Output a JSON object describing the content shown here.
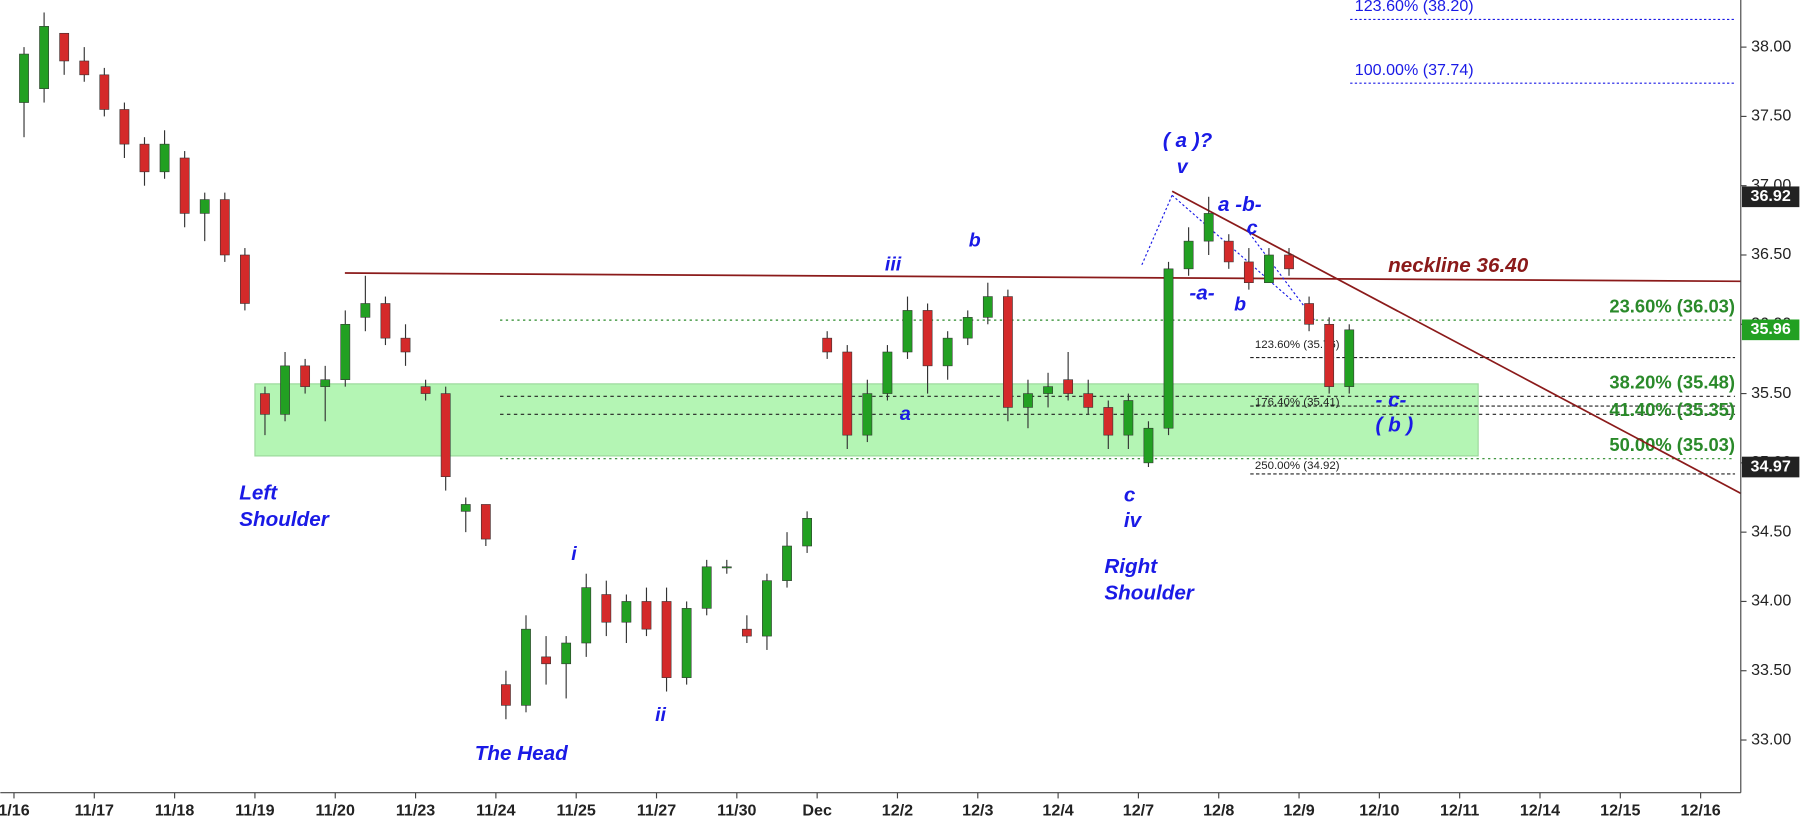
{
  "chart_data": {
    "type": "candlestick",
    "x": [
      0.125,
      0.375,
      0.625,
      0.875,
      1.125,
      1.375,
      1.625,
      1.875,
      2.125,
      2.375,
      2.625,
      2.875,
      3.125,
      3.375,
      3.625,
      3.875,
      4.125,
      4.375,
      4.625,
      4.875,
      5.125,
      5.375,
      5.625,
      5.875,
      6.125,
      6.375,
      6.625,
      6.875,
      7.125,
      7.375,
      7.625,
      7.875,
      8.125,
      8.375,
      8.625,
      8.875,
      9.125,
      9.375,
      9.625,
      9.875,
      10.125,
      10.375,
      10.625,
      10.875,
      11.125,
      11.375,
      11.625,
      11.875,
      12.125,
      12.375,
      12.625,
      12.875,
      13.125,
      13.375,
      13.625,
      13.875,
      14.125,
      14.375,
      14.625,
      14.875,
      15.125,
      15.375,
      15.625,
      15.875,
      16.125,
      16.375,
      16.625
    ],
    "open": [
      37.6,
      37.7,
      38.1,
      37.9,
      37.8,
      37.55,
      37.3,
      37.1,
      37.2,
      36.8,
      36.9,
      36.5,
      35.5,
      35.35,
      35.7,
      35.55,
      35.6,
      36.05,
      36.15,
      35.9,
      35.55,
      35.5,
      34.65,
      34.7,
      33.4,
      33.25,
      33.6,
      33.55,
      33.7,
      34.05,
      33.85,
      34.0,
      34.0,
      33.45,
      33.95,
      34.25,
      33.8,
      33.75,
      34.15,
      34.4,
      35.9,
      35.8,
      35.2,
      35.5,
      35.8,
      36.1,
      35.7,
      35.9,
      36.05,
      36.2,
      35.4,
      35.5,
      35.6,
      35.5,
      35.4,
      35.2,
      35.0,
      35.25,
      36.4,
      36.6,
      36.6,
      36.45,
      36.3,
      36.5,
      36.15,
      36.0,
      35.55
    ],
    "high": [
      38.0,
      38.25,
      38.1,
      38.0,
      37.85,
      37.6,
      37.35,
      37.4,
      37.25,
      36.95,
      36.95,
      36.55,
      35.55,
      35.8,
      35.75,
      35.7,
      36.1,
      36.35,
      36.2,
      36.0,
      35.6,
      35.55,
      34.75,
      34.7,
      33.5,
      33.9,
      33.75,
      33.75,
      34.2,
      34.15,
      34.05,
      34.1,
      34.1,
      34.0,
      34.3,
      34.3,
      33.9,
      34.2,
      34.5,
      34.65,
      35.95,
      35.85,
      35.6,
      35.85,
      36.2,
      36.15,
      35.95,
      36.1,
      36.3,
      36.25,
      35.6,
      35.65,
      35.8,
      35.6,
      35.45,
      35.5,
      35.3,
      36.45,
      36.7,
      36.92,
      36.65,
      36.55,
      36.55,
      36.55,
      36.2,
      36.05,
      36.0
    ],
    "low": [
      37.35,
      37.6,
      37.8,
      37.75,
      37.5,
      37.2,
      37.0,
      37.05,
      36.7,
      36.6,
      36.45,
      36.1,
      35.2,
      35.3,
      35.5,
      35.3,
      35.55,
      35.95,
      35.85,
      35.7,
      35.45,
      34.8,
      34.5,
      34.4,
      33.15,
      33.2,
      33.4,
      33.3,
      33.6,
      33.75,
      33.7,
      33.75,
      33.35,
      33.4,
      33.9,
      34.2,
      33.7,
      33.65,
      34.1,
      34.35,
      35.75,
      35.1,
      35.15,
      35.45,
      35.75,
      35.5,
      35.6,
      35.85,
      36.0,
      35.3,
      35.25,
      35.4,
      35.45,
      35.35,
      35.1,
      35.1,
      34.97,
      35.2,
      36.35,
      36.5,
      36.4,
      36.25,
      36.3,
      36.35,
      35.95,
      35.5,
      35.5
    ],
    "close": [
      37.95,
      38.15,
      37.9,
      37.8,
      37.55,
      37.3,
      37.1,
      37.3,
      36.8,
      36.9,
      36.5,
      36.15,
      35.35,
      35.7,
      35.55,
      35.6,
      36.0,
      36.15,
      35.9,
      35.8,
      35.5,
      34.9,
      34.7,
      34.45,
      33.25,
      33.8,
      33.55,
      33.7,
      34.1,
      33.85,
      34.0,
      33.8,
      33.45,
      33.95,
      34.25,
      34.25,
      33.75,
      34.15,
      34.4,
      34.6,
      35.8,
      35.2,
      35.5,
      35.8,
      36.1,
      35.7,
      35.9,
      36.05,
      36.2,
      35.4,
      35.5,
      35.55,
      35.5,
      35.4,
      35.2,
      35.45,
      35.25,
      36.4,
      36.6,
      36.8,
      36.45,
      36.3,
      36.5,
      36.4,
      36.0,
      35.55,
      35.96
    ],
    "up_color": "#22a022",
    "down_color": "#d42a2a",
    "xlim": [
      -0.17,
      21.5
    ],
    "xticks": [
      {
        "value": 0,
        "label": "1/16"
      },
      {
        "value": 1,
        "label": "11/17"
      },
      {
        "value": 2,
        "label": "11/18"
      },
      {
        "value": 3,
        "label": "11/19"
      },
      {
        "value": 4,
        "label": "11/20"
      },
      {
        "value": 5,
        "label": "11/23"
      },
      {
        "value": 6,
        "label": "11/24"
      },
      {
        "value": 7,
        "label": "11/25"
      },
      {
        "value": 8,
        "label": "11/27"
      },
      {
        "value": 9,
        "label": "11/30"
      },
      {
        "value": 10,
        "label": "Dec"
      },
      {
        "value": 11,
        "label": "12/2"
      },
      {
        "value": 12,
        "label": "12/3"
      },
      {
        "value": 13,
        "label": "12/4"
      },
      {
        "value": 14,
        "label": "12/7"
      },
      {
        "value": 15,
        "label": "12/8"
      },
      {
        "value": 16,
        "label": "12/9"
      },
      {
        "value": 17,
        "label": "12/10"
      },
      {
        "value": 18,
        "label": "12/11"
      },
      {
        "value": 19,
        "label": "12/14"
      },
      {
        "value": 20,
        "label": "12/15"
      },
      {
        "value": 21,
        "label": "12/16"
      }
    ],
    "ylim": [
      32.62,
      38.34
    ],
    "yticks": [
      {
        "value": 33,
        "label": "33.00"
      },
      {
        "value": 33.5,
        "label": "33.50"
      },
      {
        "value": 34,
        "label": "34.00"
      },
      {
        "value": 34.5,
        "label": "34.50"
      },
      {
        "value": 35,
        "label": "35.00"
      },
      {
        "value": 35.5,
        "label": "35.50"
      },
      {
        "value": 36,
        "label": "36.00"
      },
      {
        "value": 36.5,
        "label": "36.50"
      },
      {
        "value": 37,
        "label": "37.00"
      },
      {
        "value": 37.5,
        "label": "37.50"
      },
      {
        "value": 38,
        "label": "38.00"
      }
    ],
    "price_boxes": [
      36.92,
      35.96,
      34.97
    ],
    "zone": {
      "x": [
        3.0,
        18.23
      ],
      "y": [
        35.05,
        35.57
      ],
      "color": "#b4f5b4"
    },
    "fib_levels": [
      {
        "value": 38.2,
        "label": "123.60% (38.20)"
      },
      {
        "value": 37.74,
        "label": "100.00% (37.74)"
      },
      {
        "value": 36.03,
        "label": "23.60% (36.03)"
      },
      {
        "value": 35.76,
        "label": "123.60% (35.76)"
      },
      {
        "value": 35.48,
        "label": "38.20% (35.48)"
      },
      {
        "value": 35.41,
        "label": "176.40% (35.41)"
      },
      {
        "value": 35.35,
        "label": "41.40% (35.35)"
      },
      {
        "value": 35.03,
        "label": "50.00% (35.03)"
      },
      {
        "value": 34.92,
        "label": "250.00% (34.92)"
      }
    ],
    "trendlines": [
      {
        "x": [
          4.12,
          21.5
        ],
        "y": [
          36.37,
          36.31
        ]
      },
      {
        "x": [
          14.42,
          21.5
        ],
        "y": [
          36.96,
          34.78
        ]
      }
    ],
    "annotations": [
      "Left",
      "Shoulder",
      "The Head",
      "i",
      "ii",
      "iii",
      "b",
      "a",
      "Right",
      "Shoulder",
      "c",
      "iv",
      "( a )?",
      "v",
      "a -b-",
      "c",
      "-a-",
      "b",
      "- c-",
      "( b )",
      "neckline 36.40"
    ]
  }
}
